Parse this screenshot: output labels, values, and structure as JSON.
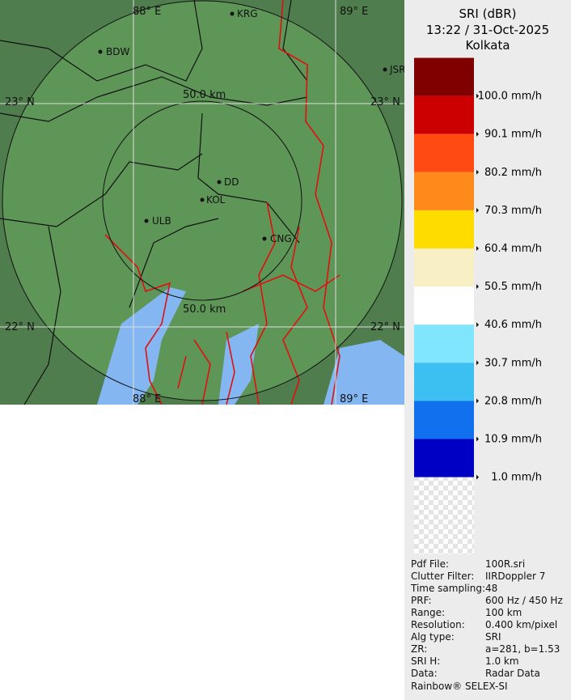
{
  "header": {
    "title": "SRI (dBR)",
    "time": "13:22 / 31-Oct-2025",
    "station": "Kolkata"
  },
  "map": {
    "lon_labels": [
      "88° E",
      "89° E",
      "88° E",
      "89° E"
    ],
    "lat_labels": [
      "23° N",
      "23° N",
      "22° N",
      "22° N"
    ],
    "range_labels": [
      "50.0 km",
      "50.0 km"
    ],
    "cities": [
      "KRG",
      "BDW",
      "JSR",
      "DD",
      "KOL",
      "ULB",
      "CNG"
    ]
  },
  "legend": [
    {
      "label": "100.0 mm/h",
      "color": "#800000"
    },
    {
      "label": "90.1 mm/h",
      "color": "#cc0000"
    },
    {
      "label": "80.2 mm/h",
      "color": "#ff4a12"
    },
    {
      "label": "70.3 mm/h",
      "color": "#ff8a1c"
    },
    {
      "label": "60.4 mm/h",
      "color": "#ffdc00"
    },
    {
      "label": "50.5 mm/h",
      "color": "#f8f0c4"
    },
    {
      "label": "40.6 mm/h",
      "color": "#ffffff"
    },
    {
      "label": "30.7 mm/h",
      "color": "#80e6ff"
    },
    {
      "label": "20.8 mm/h",
      "color": "#3cc0f2"
    },
    {
      "label": "10.9 mm/h",
      "color": "#1070ee"
    },
    {
      "label": "1.0 mm/h",
      "color": "#0000c4"
    }
  ],
  "info": [
    {
      "label": "Pdf File:",
      "value": "100R.sri"
    },
    {
      "label": "Clutter Filter:",
      "value": "IIRDoppler 7"
    },
    {
      "label": "Time sampling:",
      "value": "48"
    },
    {
      "label": "PRF:",
      "value": "600 Hz / 450 Hz"
    },
    {
      "label": "Range:",
      "value": "100 km"
    },
    {
      "label": "Resolution:",
      "value": "0.400 km/pixel"
    },
    {
      "label": "Alg type:",
      "value": "SRI"
    },
    {
      "label": "ZR:",
      "value": "a=281, b=1.53"
    },
    {
      "label": "SRI H:",
      "value": "1.0 km"
    },
    {
      "label": "Data:",
      "value": "Radar Data"
    }
  ],
  "footer": "Rainbow® SELEX-SI"
}
